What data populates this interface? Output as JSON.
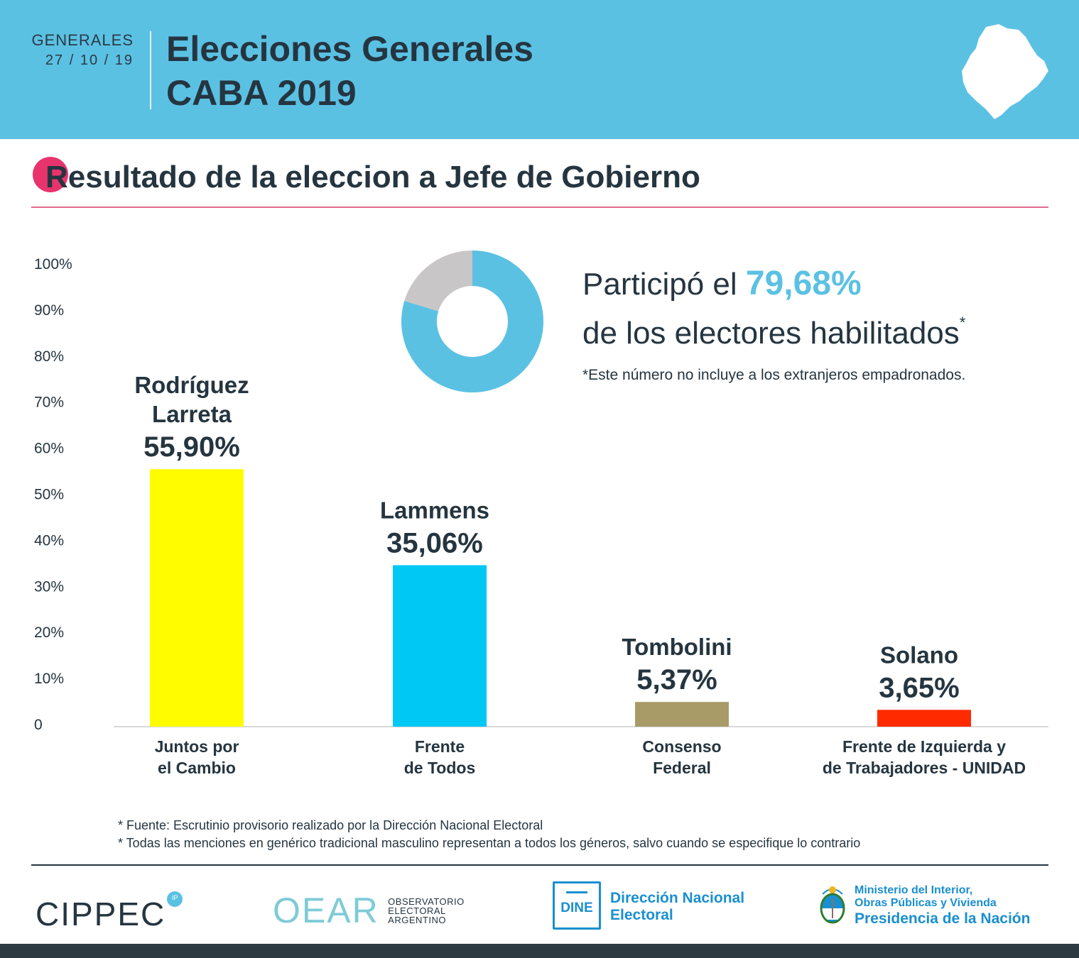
{
  "header": {
    "label": "GENERALES",
    "date": "27 / 10 / 19",
    "title_line1": "Elecciones Generales",
    "title_line2": "CABA 2019",
    "map_icon": "caba-map-icon"
  },
  "section": {
    "title": "Resultado de la eleccion a Jefe de Gobierno"
  },
  "participation": {
    "prefix": "Participó el",
    "value": "79,68%",
    "line2": "de los electores habilitados",
    "asterisk": "*",
    "note": "*Este número no incluye a los extranjeros empadronados.",
    "percent": 79.68
  },
  "chart_data": {
    "type": "bar",
    "title": "Resultado de la eleccion a Jefe de Gobierno",
    "ylim": [
      0,
      100
    ],
    "yticks": [
      {
        "value": 100,
        "label": "100%"
      },
      {
        "value": 90,
        "label": "90%"
      },
      {
        "value": 80,
        "label": "80%"
      },
      {
        "value": 70,
        "label": "70%"
      },
      {
        "value": 60,
        "label": "60%"
      },
      {
        "value": 50,
        "label": "50%"
      },
      {
        "value": 40,
        "label": "40%"
      },
      {
        "value": 30,
        "label": "30%"
      },
      {
        "value": 20,
        "label": "20%"
      },
      {
        "value": 10,
        "label": "10%"
      },
      {
        "value": 0,
        "label": "0"
      }
    ],
    "bars": [
      {
        "candidate": [
          "Rodríguez",
          "Larreta"
        ],
        "value": 55.9,
        "label": "55,90%",
        "party": [
          "Juntos por",
          "el Cambio"
        ],
        "color": "#fffc00"
      },
      {
        "candidate": [
          "Lammens"
        ],
        "value": 35.06,
        "label": "35,06%",
        "party": [
          "Frente",
          "de Todos"
        ],
        "color": "#00c8f5"
      },
      {
        "candidate": [
          "Tombolini"
        ],
        "value": 5.37,
        "label": "5,37%",
        "party": [
          "Consenso",
          "Federal"
        ],
        "color": "#a89b68"
      },
      {
        "candidate": [
          "Solano"
        ],
        "value": 3.65,
        "label": "3,65%",
        "party": [
          "Frente de Izquierda y",
          "de Trabajadores - UNIDAD"
        ],
        "color": "#ff2a00"
      }
    ]
  },
  "colors": {
    "header_bg": "#5bc1e3",
    "accent_pink": "#e8336c",
    "text_dark": "#253540",
    "donut_blue": "#5bc1e3",
    "donut_grey": "#c8c6c6",
    "dine_blue": "#1a8fd0"
  },
  "footnotes": [
    "* Fuente: Escrutinio provisorio realizado por la Dirección Nacional Electoral",
    "* Todas las menciones en genérico tradicional masculino representan a todos los géneros, salvo cuando se especifique lo contrario"
  ],
  "logos": {
    "cippec": "CIPPEC",
    "cippec_badge": "IP",
    "oear_big": "OEAR",
    "oear_small": [
      "OBSERVATORIO",
      "ELECTORAL",
      "ARGENTINO"
    ],
    "dine_box": "DINE",
    "dine_name": [
      "Dirección Nacional",
      "Electoral"
    ],
    "ministerio": [
      "Ministerio del Interior,",
      "Obras Públicas y Vivienda"
    ],
    "presidencia": "Presidencia de la Nación"
  }
}
